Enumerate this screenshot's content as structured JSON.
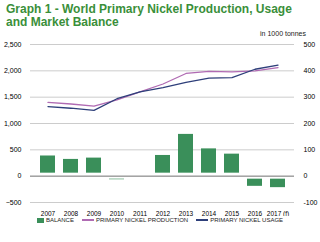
{
  "chart_data": {
    "type": "bar",
    "title": "Graph 1 - World Primary Nickel Production, Usage and Market Balance",
    "subtitle": "in 1000 tonnes",
    "categories": [
      "2007",
      "2008",
      "2009",
      "2010",
      "2011",
      "2012",
      "2013",
      "2014",
      "2015",
      "2016",
      "2017 (f)"
    ],
    "series": [
      {
        "name": "BALANCE",
        "type": "bar",
        "axis": "y2",
        "color": "#3a8f5a",
        "values": [
          88,
          75,
          80,
          -25,
          -10,
          90,
          170,
          115,
          95,
          -50,
          -55
        ]
      },
      {
        "name": "PRIMARY NICKEL PRODUCTION",
        "type": "line",
        "color": "#b06bb3",
        "values": [
          1400,
          1370,
          1330,
          1450,
          1600,
          1750,
          1950,
          1990,
          1980,
          2000,
          2060
        ]
      },
      {
        "name": "PRIMARY NICKEL USAGE",
        "type": "line",
        "color": "#2e3f7a",
        "values": [
          1320,
          1290,
          1250,
          1470,
          1600,
          1680,
          1780,
          1860,
          1870,
          2030,
          2110
        ]
      }
    ],
    "ylim": [
      -500,
      2500
    ],
    "yticks": [
      -500,
      0,
      500,
      1000,
      1500,
      2000,
      2500
    ],
    "y2lim": [
      -100,
      500
    ],
    "y2ticks": [
      -100,
      0,
      100,
      200,
      300,
      400,
      500
    ],
    "grid": true,
    "legend": "bottom"
  }
}
